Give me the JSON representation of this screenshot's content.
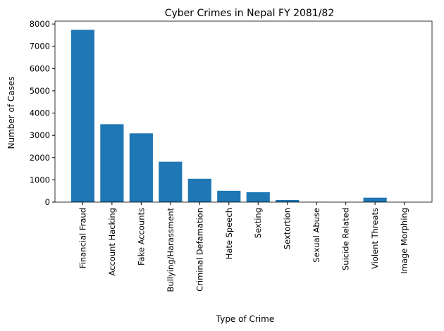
{
  "chart_data": {
    "type": "bar",
    "title": "Cyber Crimes in Nepal FY 2081/82",
    "x_label": "Type of Crime",
    "y_label": "Number of Cases",
    "categories": [
      "Financial Fraud",
      "Account Hacking",
      "Fake Accounts",
      "Bullying/Harassment",
      "Criminal Defamation",
      "Hate Speech",
      "Sexting",
      "Sextortion",
      "Sexual Abuse",
      "Suicide Related",
      "Violent Threats",
      "Image Morphing"
    ],
    "values": [
      7740,
      3500,
      3090,
      1815,
      1050,
      510,
      445,
      95,
      10,
      5,
      200,
      5
    ],
    "color": "#1f77b4",
    "ylim": [
      0,
      8130
    ],
    "yticks": [
      0,
      1000,
      2000,
      3000,
      4000,
      5000,
      6000,
      7000,
      8000
    ],
    "grid": false
  }
}
